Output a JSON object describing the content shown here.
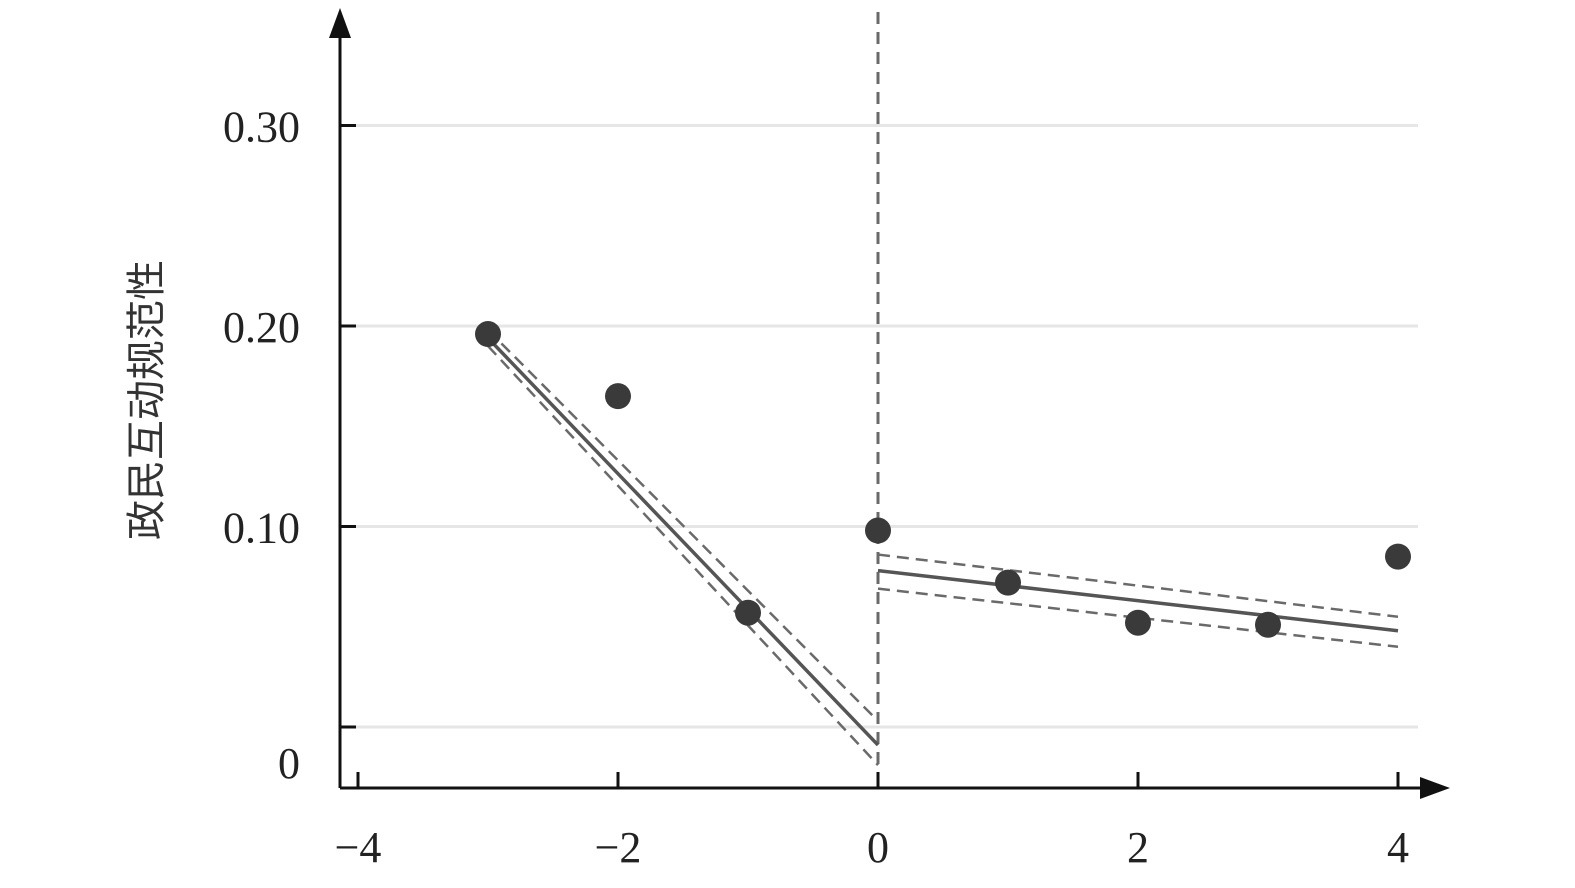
{
  "chart_data": {
    "type": "scatter",
    "title": "",
    "xlabel": "",
    "ylabel": "政民互动规范性",
    "xlim": [
      -4,
      4
    ],
    "ylim": [
      -0.03,
      0.33
    ],
    "x_ticks": [
      -4,
      -2,
      0,
      2,
      4
    ],
    "x_tick_labels": [
      "−4",
      "−2",
      "0",
      "2",
      "4"
    ],
    "y_ticks": [
      0,
      0.1,
      0.2,
      0.3
    ],
    "y_tick_labels": [
      "0",
      "0.10",
      "0.20",
      "0.30"
    ],
    "grid": "horizontal",
    "cutoff_x": 0,
    "points": [
      {
        "x": -3,
        "y": 0.196
      },
      {
        "x": -2,
        "y": 0.165
      },
      {
        "x": -1,
        "y": 0.057
      },
      {
        "x": 0,
        "y": 0.098
      },
      {
        "x": 1,
        "y": 0.072
      },
      {
        "x": 2,
        "y": 0.052
      },
      {
        "x": 3,
        "y": 0.051
      },
      {
        "x": 4,
        "y": 0.085
      }
    ],
    "fit_segments": [
      {
        "x": [
          -3,
          0
        ],
        "fit": [
          0.194,
          -0.009
        ],
        "upper": [
          0.198,
          0.003
        ],
        "lower": [
          0.19,
          -0.019
        ]
      },
      {
        "x": [
          0,
          4
        ],
        "fit": [
          0.078,
          0.048
        ],
        "upper": [
          0.086,
          0.055
        ],
        "lower": [
          0.069,
          0.04
        ]
      }
    ],
    "colors": {
      "points": "#3a3a3a",
      "fit": "#555555",
      "ci": "#6a6a6a",
      "grid": "#e6e6e6",
      "axis": "#111111"
    }
  }
}
